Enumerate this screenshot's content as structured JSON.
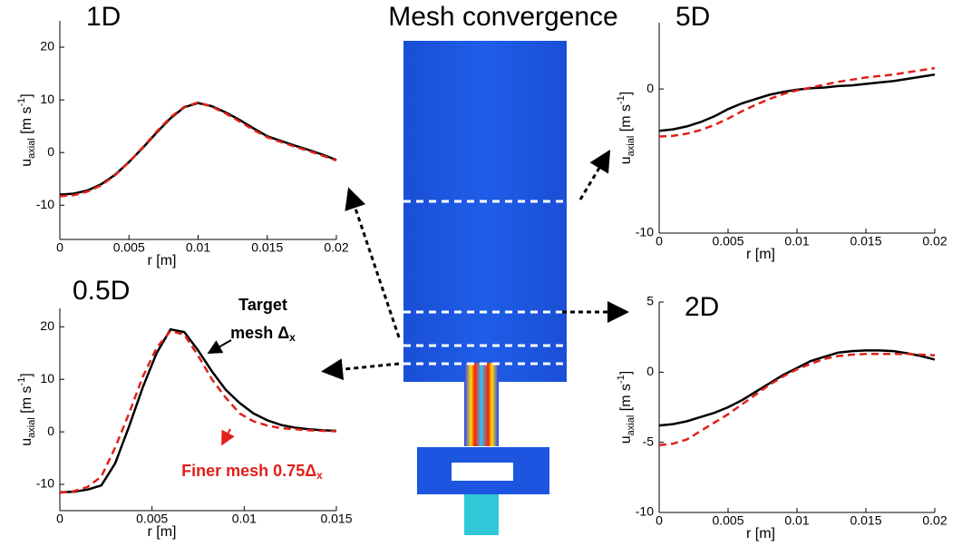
{
  "title": "Mesh convergence",
  "annotations": {
    "target": [
      "Target",
      "mesh Δ",
      "x"
    ],
    "finer": [
      "Finer mesh 0.75Δ",
      "x"
    ]
  },
  "chart_data": [
    {
      "type": "line",
      "title": "1D",
      "xlabel": "r [m]",
      "ylabel": [
        "u",
        "axial",
        " [m s",
        "-1",
        "]"
      ],
      "x": [
        0,
        0.001,
        0.002,
        0.003,
        0.004,
        0.005,
        0.006,
        0.007,
        0.008,
        0.009,
        0.01,
        0.011,
        0.012,
        0.013,
        0.014,
        0.015,
        0.016,
        0.017,
        0.018,
        0.019,
        0.02
      ],
      "xlim": [
        0,
        0.02
      ],
      "xticks": [
        0,
        0.005,
        0.01,
        0.015,
        0.02
      ],
      "ylim": [
        -16.5,
        25
      ],
      "yticks": [
        -10,
        0,
        10,
        20
      ],
      "series": [
        {
          "color": "#000000",
          "dash": false,
          "values": [
            -8,
            -7.8,
            -7.2,
            -6,
            -4.2,
            -1.8,
            0.9,
            3.8,
            6.5,
            8.6,
            9.4,
            8.8,
            7.6,
            6.2,
            4.6,
            3.1,
            2.2,
            1.3,
            0.5,
            -0.4,
            -1.4
          ]
        },
        {
          "color": "#e0201b",
          "dash": true,
          "values": [
            -8.3,
            -8.1,
            -7.4,
            -6.2,
            -4.3,
            -1.8,
            1,
            4,
            6.7,
            8.7,
            9.5,
            8.7,
            7.4,
            5.9,
            4.3,
            2.9,
            2,
            1.1,
            0.3,
            -0.6,
            -1.5
          ]
        }
      ]
    },
    {
      "type": "line",
      "title": "5D",
      "xlabel": "r [m]",
      "ylabel": [
        "u",
        "axial",
        " [m s",
        "-1",
        "]"
      ],
      "x": [
        0,
        0.001,
        0.002,
        0.003,
        0.004,
        0.005,
        0.006,
        0.007,
        0.008,
        0.009,
        0.01,
        0.011,
        0.012,
        0.013,
        0.014,
        0.015,
        0.016,
        0.017,
        0.018,
        0.019,
        0.02
      ],
      "xlim": [
        0,
        0.02
      ],
      "xticks": [
        0,
        0.005,
        0.01,
        0.015,
        0.02
      ],
      "ylim": [
        -10,
        4.6
      ],
      "yticks": [
        -10,
        0
      ],
      "series": [
        {
          "color": "#000000",
          "dash": false,
          "values": [
            -2.9,
            -2.8,
            -2.6,
            -2.3,
            -1.9,
            -1.4,
            -1,
            -0.7,
            -0.4,
            -0.2,
            -0.05,
            0.05,
            0.1,
            0.2,
            0.25,
            0.35,
            0.45,
            0.55,
            0.7,
            0.85,
            1
          ]
        },
        {
          "color": "#e0201b",
          "dash": true,
          "values": [
            -3.3,
            -3.25,
            -3.1,
            -2.85,
            -2.5,
            -2.05,
            -1.55,
            -1.1,
            -0.7,
            -0.35,
            -0.1,
            0.1,
            0.3,
            0.5,
            0.65,
            0.8,
            0.9,
            1,
            1.15,
            1.3,
            1.45
          ]
        }
      ]
    },
    {
      "type": "line",
      "title": "0.5D",
      "xlabel": "r [m]",
      "ylabel": [
        "u",
        "axial",
        " [m s",
        "-1",
        "]"
      ],
      "x": [
        0,
        0.00075,
        0.0015,
        0.00225,
        0.003,
        0.00375,
        0.0045,
        0.00525,
        0.006,
        0.00675,
        0.0075,
        0.00825,
        0.009,
        0.00975,
        0.0105,
        0.01125,
        0.012,
        0.01275,
        0.0135,
        0.01425,
        0.015
      ],
      "xlim": [
        0,
        0.015
      ],
      "xticks": [
        0,
        0.005,
        0.01,
        0.015
      ],
      "ylim": [
        -15,
        23.5
      ],
      "yticks": [
        -10,
        0,
        10,
        20
      ],
      "series": [
        {
          "color": "#000000",
          "dash": false,
          "values": [
            -11.5,
            -11.4,
            -11,
            -10.2,
            -6,
            1,
            8.5,
            15,
            19.5,
            19,
            15.5,
            11.5,
            8,
            5.5,
            3.5,
            2.2,
            1.3,
            0.8,
            0.5,
            0.3,
            0.2
          ]
        },
        {
          "color": "#e0201b",
          "dash": true,
          "values": [
            -11.6,
            -11.3,
            -10.5,
            -8.5,
            -3,
            3.5,
            10.5,
            16,
            19.2,
            18.5,
            14.5,
            10,
            6.5,
            3.5,
            2,
            1.2,
            0.7,
            0.5,
            0.3,
            0.2,
            0.1
          ]
        }
      ]
    },
    {
      "type": "line",
      "title": "2D",
      "xlabel": "r [m]",
      "ylabel": [
        "u",
        "axial",
        " [m s",
        "-1",
        "]"
      ],
      "x": [
        0,
        0.001,
        0.002,
        0.003,
        0.004,
        0.005,
        0.006,
        0.007,
        0.008,
        0.009,
        0.01,
        0.011,
        0.012,
        0.013,
        0.014,
        0.015,
        0.016,
        0.017,
        0.018,
        0.019,
        0.02
      ],
      "xlim": [
        0,
        0.02
      ],
      "xticks": [
        0,
        0.005,
        0.01,
        0.015,
        0.02
      ],
      "ylim": [
        -10,
        5
      ],
      "yticks": [
        -10,
        -5,
        0,
        5
      ],
      "series": [
        {
          "color": "#000000",
          "dash": false,
          "values": [
            -3.8,
            -3.7,
            -3.5,
            -3.2,
            -2.9,
            -2.5,
            -2,
            -1.4,
            -0.8,
            -0.2,
            0.3,
            0.8,
            1.1,
            1.4,
            1.5,
            1.55,
            1.55,
            1.5,
            1.35,
            1.15,
            0.9
          ]
        },
        {
          "color": "#e0201b",
          "dash": true,
          "values": [
            -5.2,
            -5.1,
            -4.8,
            -4.2,
            -3.6,
            -3,
            -2.3,
            -1.6,
            -0.9,
            -0.3,
            0.2,
            0.6,
            0.95,
            1.15,
            1.25,
            1.3,
            1.3,
            1.3,
            1.3,
            1.25,
            1.2
          ]
        }
      ]
    }
  ]
}
